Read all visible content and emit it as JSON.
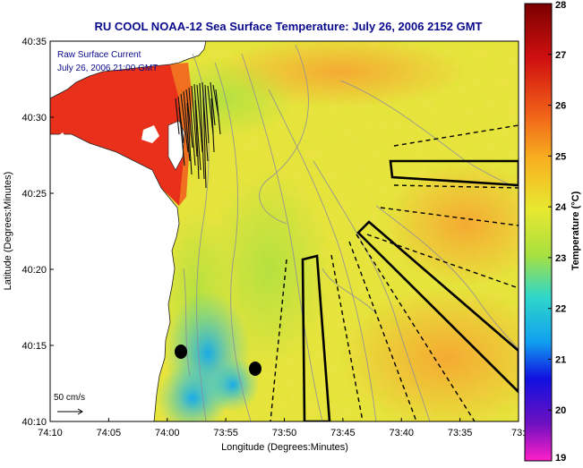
{
  "title": "RU COOL  NOAA-12  Sea Surface Temperature:  July 26, 2006 2152 GMT",
  "current": {
    "label_line1": "Raw Surface Current",
    "label_line2": "July 26, 2006 21:00 GMT",
    "scale_label": "50 cm/s"
  },
  "axes": {
    "xlabel": "Longitude (Degrees:Minutes)",
    "ylabel": "Latitude (Degrees:Minutes)",
    "x_ticks": [
      "74:10",
      "74:05",
      "74:00",
      "73:55",
      "73:50",
      "73:45",
      "73:40",
      "73:35",
      "73:3"
    ],
    "y_ticks": [
      "40:35",
      "40:30",
      "40:25",
      "40:20",
      "40:15",
      "40:10"
    ]
  },
  "colorbar": {
    "label": "Temperature (°C)",
    "ticks": [
      "28",
      "27",
      "26",
      "25",
      "24",
      "23",
      "22",
      "21",
      "20",
      "19"
    ],
    "min": 19,
    "max": 28
  },
  "colors": {
    "title": "#0a0a8c",
    "land": "#ffffff",
    "warm": "#e8301a",
    "ocean_base": "#e4e43a"
  }
}
